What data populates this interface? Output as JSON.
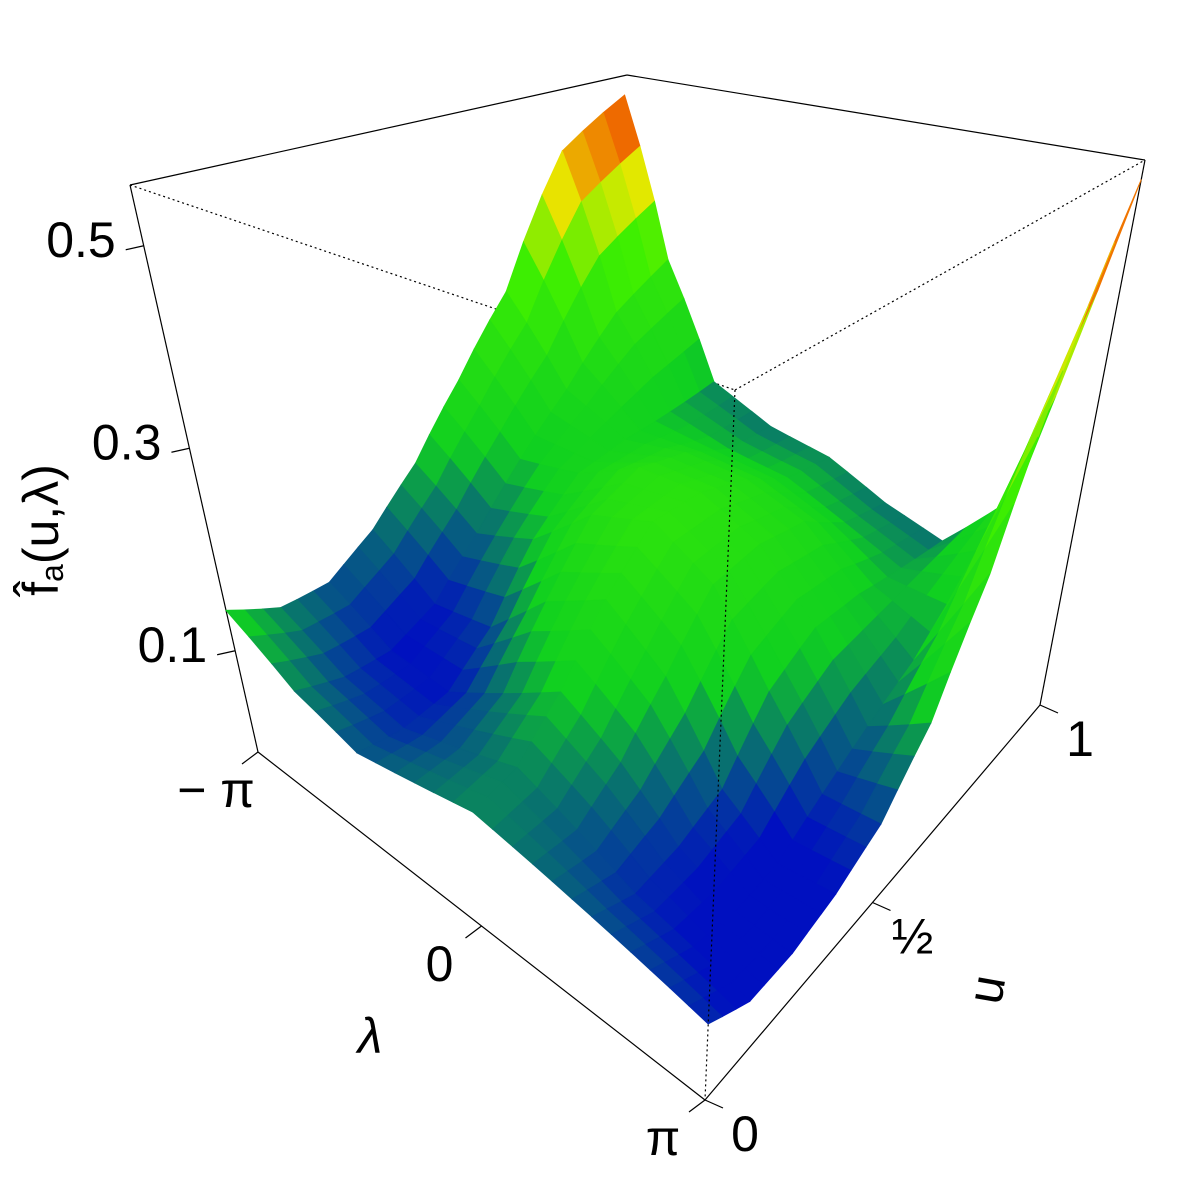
{
  "chart_data": {
    "type": "surface",
    "xlabel": "λ",
    "ylabel": "u",
    "zlabel": [
      "f̂",
      "a",
      "(u,λ)"
    ],
    "x": [
      -3.14159,
      -2.35619,
      -1.5708,
      -0.7854,
      0,
      0.7854,
      1.5708,
      2.35619,
      3.14159
    ],
    "y": [
      0,
      0.125,
      0.25,
      0.375,
      0.5,
      0.625,
      0.75,
      0.875,
      1
    ],
    "z": [
      [
        0.14,
        0.1,
        0.08,
        0.09,
        0.1,
        0.09,
        0.08,
        0.07,
        0.06
      ],
      [
        0.1,
        0.07,
        0.06,
        0.08,
        0.1,
        0.08,
        0.06,
        0.05,
        0.04
      ],
      [
        0.08,
        0.05,
        0.05,
        0.09,
        0.13,
        0.1,
        0.06,
        0.04,
        0.04
      ],
      [
        0.09,
        0.05,
        0.07,
        0.14,
        0.18,
        0.14,
        0.07,
        0.04,
        0.05
      ],
      [
        0.12,
        0.08,
        0.12,
        0.19,
        0.22,
        0.19,
        0.12,
        0.06,
        0.07
      ],
      [
        0.18,
        0.12,
        0.15,
        0.2,
        0.21,
        0.19,
        0.14,
        0.08,
        0.12
      ],
      [
        0.26,
        0.16,
        0.14,
        0.17,
        0.18,
        0.17,
        0.13,
        0.1,
        0.22
      ],
      [
        0.45,
        0.22,
        0.12,
        0.12,
        0.13,
        0.12,
        0.11,
        0.14,
        0.38
      ],
      [
        0.52,
        0.25,
        0.1,
        0.09,
        0.1,
        0.09,
        0.09,
        0.18,
        0.54
      ]
    ],
    "xlim": [
      -3.14159,
      3.14159
    ],
    "ylim": [
      0,
      1
    ],
    "zlim": [
      0,
      0.56
    ],
    "xticks": [
      {
        "value": -3.14159,
        "label": "− π"
      },
      0,
      {
        "value": 3.14159,
        "label": "π"
      }
    ],
    "yticks": [
      0,
      {
        "value": 0.5,
        "label": "½"
      },
      1
    ],
    "zticks": [
      0.1,
      0.3,
      0.5
    ],
    "colorscale": [
      [
        0.05,
        "#0010c0"
      ],
      [
        0.13,
        "#10d020"
      ],
      [
        0.28,
        "#40f000"
      ],
      [
        0.38,
        "#e8e800"
      ],
      [
        0.46,
        "#f07000"
      ],
      [
        0.55,
        "#c00000"
      ]
    ]
  }
}
